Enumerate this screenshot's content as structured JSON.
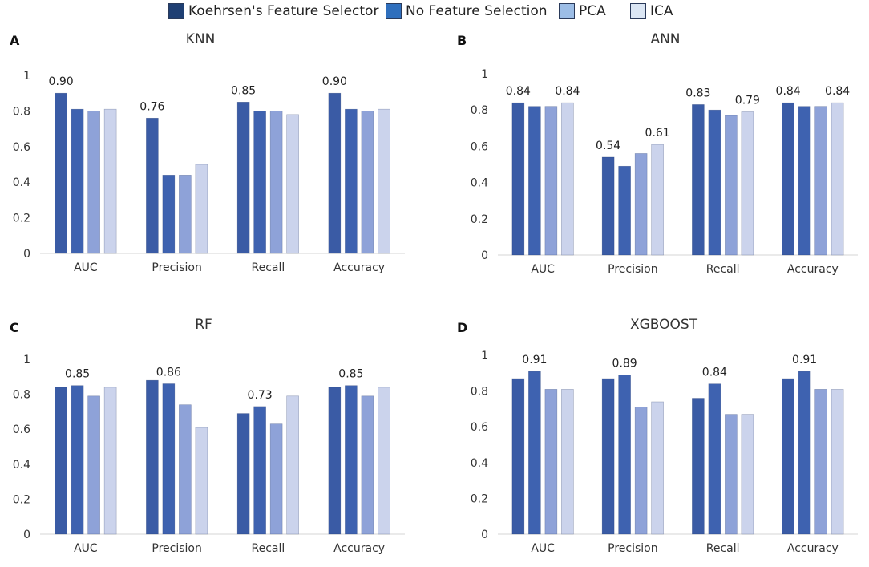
{
  "legend": [
    {
      "label": "Koehrsen's Feature Selector",
      "color": "#1f3f73"
    },
    {
      "label": "No Feature Selection",
      "color": "#2f6fbd"
    },
    {
      "label": "PCA",
      "color": "#9cbde6"
    },
    {
      "label": "ICA",
      "color": "#dbe6f4"
    }
  ],
  "bar_colors": [
    "#3a5ba5",
    "#3e62b0",
    "#8ea2d8",
    "#cbd3ec"
  ],
  "chart_data": [
    {
      "type": "bar",
      "letter": "A",
      "title": "KNN",
      "categories": [
        "AUC",
        "Precision",
        "Recall",
        "Accuracy"
      ],
      "ylim": [
        0,
        1
      ],
      "yticks": [
        "0",
        "0.2",
        "0.4",
        "0.6",
        "0.8",
        "1"
      ],
      "series": [
        {
          "name": "Koehrsen's Feature Selector",
          "values": [
            0.9,
            0.76,
            0.85,
            0.9
          ]
        },
        {
          "name": "No Feature Selection",
          "values": [
            0.81,
            0.44,
            0.8,
            0.81
          ]
        },
        {
          "name": "PCA",
          "values": [
            0.8,
            0.44,
            0.8,
            0.8
          ]
        },
        {
          "name": "ICA",
          "values": [
            0.81,
            0.5,
            0.78,
            0.81
          ]
        }
      ],
      "labels": [
        {
          "series": 0,
          "category": 0,
          "text": "0.90"
        },
        {
          "series": 0,
          "category": 1,
          "text": "0.76"
        },
        {
          "series": 0,
          "category": 2,
          "text": "0.85"
        },
        {
          "series": 0,
          "category": 3,
          "text": "0.90"
        }
      ]
    },
    {
      "type": "bar",
      "letter": "B",
      "title": "ANN",
      "categories": [
        "AUC",
        "Precision",
        "Recall",
        "Accuracy"
      ],
      "ylim": [
        0,
        1
      ],
      "yticks": [
        "0",
        "0.2",
        "0.4",
        "0.6",
        "0.8",
        "1"
      ],
      "series": [
        {
          "name": "Koehrsen's Feature Selector",
          "values": [
            0.84,
            0.54,
            0.83,
            0.84
          ]
        },
        {
          "name": "No Feature Selection",
          "values": [
            0.82,
            0.49,
            0.8,
            0.82
          ]
        },
        {
          "name": "PCA",
          "values": [
            0.82,
            0.56,
            0.77,
            0.82
          ]
        },
        {
          "name": "ICA",
          "values": [
            0.84,
            0.61,
            0.79,
            0.84
          ]
        }
      ],
      "labels": [
        {
          "series": 0,
          "category": 0,
          "text": "0.84"
        },
        {
          "series": 3,
          "category": 0,
          "text": "0.84"
        },
        {
          "series": 0,
          "category": 1,
          "text": "0.54"
        },
        {
          "series": 3,
          "category": 1,
          "text": "0.61"
        },
        {
          "series": 0,
          "category": 2,
          "text": "0.83"
        },
        {
          "series": 3,
          "category": 2,
          "text": "0.79"
        },
        {
          "series": 0,
          "category": 3,
          "text": "0.84"
        },
        {
          "series": 3,
          "category": 3,
          "text": "0.84"
        }
      ]
    },
    {
      "type": "bar",
      "letter": "C",
      "title": "RF",
      "categories": [
        "AUC",
        "Precision",
        "Recall",
        "Accuracy"
      ],
      "ylim": [
        0,
        1
      ],
      "yticks": [
        "0",
        "0.2",
        "0.4",
        "0.6",
        "0.8",
        "1"
      ],
      "series": [
        {
          "name": "Koehrsen's Feature Selector",
          "values": [
            0.84,
            0.88,
            0.69,
            0.84
          ]
        },
        {
          "name": "No Feature Selection",
          "values": [
            0.85,
            0.86,
            0.73,
            0.85
          ]
        },
        {
          "name": "PCA",
          "values": [
            0.79,
            0.74,
            0.63,
            0.79
          ]
        },
        {
          "name": "ICA",
          "values": [
            0.84,
            0.61,
            0.79,
            0.84
          ]
        }
      ],
      "labels": [
        {
          "series": 1,
          "category": 0,
          "text": "0.85"
        },
        {
          "series": 1,
          "category": 1,
          "text": "0.86"
        },
        {
          "series": 1,
          "category": 2,
          "text": "0.73"
        },
        {
          "series": 1,
          "category": 3,
          "text": "0.85"
        }
      ]
    },
    {
      "type": "bar",
      "letter": "D",
      "title": "XGBOOST",
      "categories": [
        "AUC",
        "Precision",
        "Recall",
        "Accuracy"
      ],
      "ylim": [
        0,
        1
      ],
      "yticks": [
        "0",
        "0.2",
        "0.4",
        "0.6",
        "0.8",
        "1"
      ],
      "series": [
        {
          "name": "Koehrsen's Feature Selector",
          "values": [
            0.87,
            0.87,
            0.76,
            0.87
          ]
        },
        {
          "name": "No Feature Selection",
          "values": [
            0.91,
            0.89,
            0.84,
            0.91
          ]
        },
        {
          "name": "PCA",
          "values": [
            0.81,
            0.71,
            0.67,
            0.81
          ]
        },
        {
          "name": "ICA",
          "values": [
            0.81,
            0.74,
            0.67,
            0.81
          ]
        }
      ],
      "labels": [
        {
          "series": 1,
          "category": 0,
          "text": "0.91"
        },
        {
          "series": 1,
          "category": 1,
          "text": "0.89"
        },
        {
          "series": 1,
          "category": 2,
          "text": "0.84"
        },
        {
          "series": 1,
          "category": 3,
          "text": "0.91"
        }
      ]
    }
  ]
}
